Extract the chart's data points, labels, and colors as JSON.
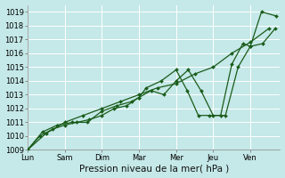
{
  "xlabel": "Pression niveau de la mer( hPa )",
  "background_color": "#c5e8e8",
  "grid_color": "#ffffff",
  "line_color": "#1a5c1a",
  "ylim": [
    1009,
    1019.5
  ],
  "xlim": [
    0,
    6.8
  ],
  "x_ticks": [
    0,
    1,
    2,
    3,
    4,
    5,
    6
  ],
  "x_tick_labels": [
    "Lun",
    "Sam",
    "Dim",
    "Mar",
    "Mer",
    "Jeu",
    "Ven"
  ],
  "yticks": [
    1009,
    1010,
    1011,
    1012,
    1013,
    1014,
    1015,
    1016,
    1017,
    1018,
    1019
  ],
  "line1_x": [
    0,
    0.33,
    0.67,
    1.0,
    1.33,
    1.67,
    2.0,
    2.33,
    2.67,
    3.0,
    3.33,
    3.67,
    4.0,
    4.33,
    4.67,
    5.0,
    5.33,
    5.67,
    6.0,
    6.33,
    6.67
  ],
  "line1_y": [
    1009.0,
    1010.0,
    1010.5,
    1010.8,
    1011.0,
    1011.2,
    1011.5,
    1012.0,
    1012.2,
    1012.8,
    1013.3,
    1013.0,
    1014.0,
    1014.8,
    1013.3,
    1011.5,
    1011.5,
    1015.0,
    1016.5,
    1016.7,
    1017.8
  ],
  "line2_x": [
    0,
    0.5,
    1.0,
    1.5,
    2.0,
    2.5,
    3.0,
    3.5,
    4.0,
    4.5,
    5.0,
    5.5,
    6.0,
    6.5
  ],
  "line2_y": [
    1009.0,
    1010.2,
    1011.0,
    1011.5,
    1012.0,
    1012.5,
    1013.0,
    1013.5,
    1013.8,
    1014.5,
    1015.0,
    1016.0,
    1016.8,
    1017.8
  ],
  "line3_x": [
    0,
    0.4,
    0.8,
    1.2,
    1.6,
    2.0,
    2.4,
    2.8,
    3.0,
    3.2,
    3.6,
    4.0,
    4.3,
    4.6,
    4.9,
    5.2,
    5.5,
    5.8,
    6.0,
    6.3,
    6.7
  ],
  "line3_y": [
    1009.0,
    1010.3,
    1010.8,
    1011.0,
    1011.0,
    1011.8,
    1012.2,
    1012.5,
    1012.8,
    1013.5,
    1014.0,
    1014.8,
    1013.3,
    1011.5,
    1011.5,
    1011.5,
    1015.2,
    1016.7,
    1016.5,
    1019.0,
    1018.7
  ],
  "xlabel_fontsize": 7.5,
  "tick_fontsize": 6,
  "line_width": 0.9,
  "marker_size": 2.0
}
